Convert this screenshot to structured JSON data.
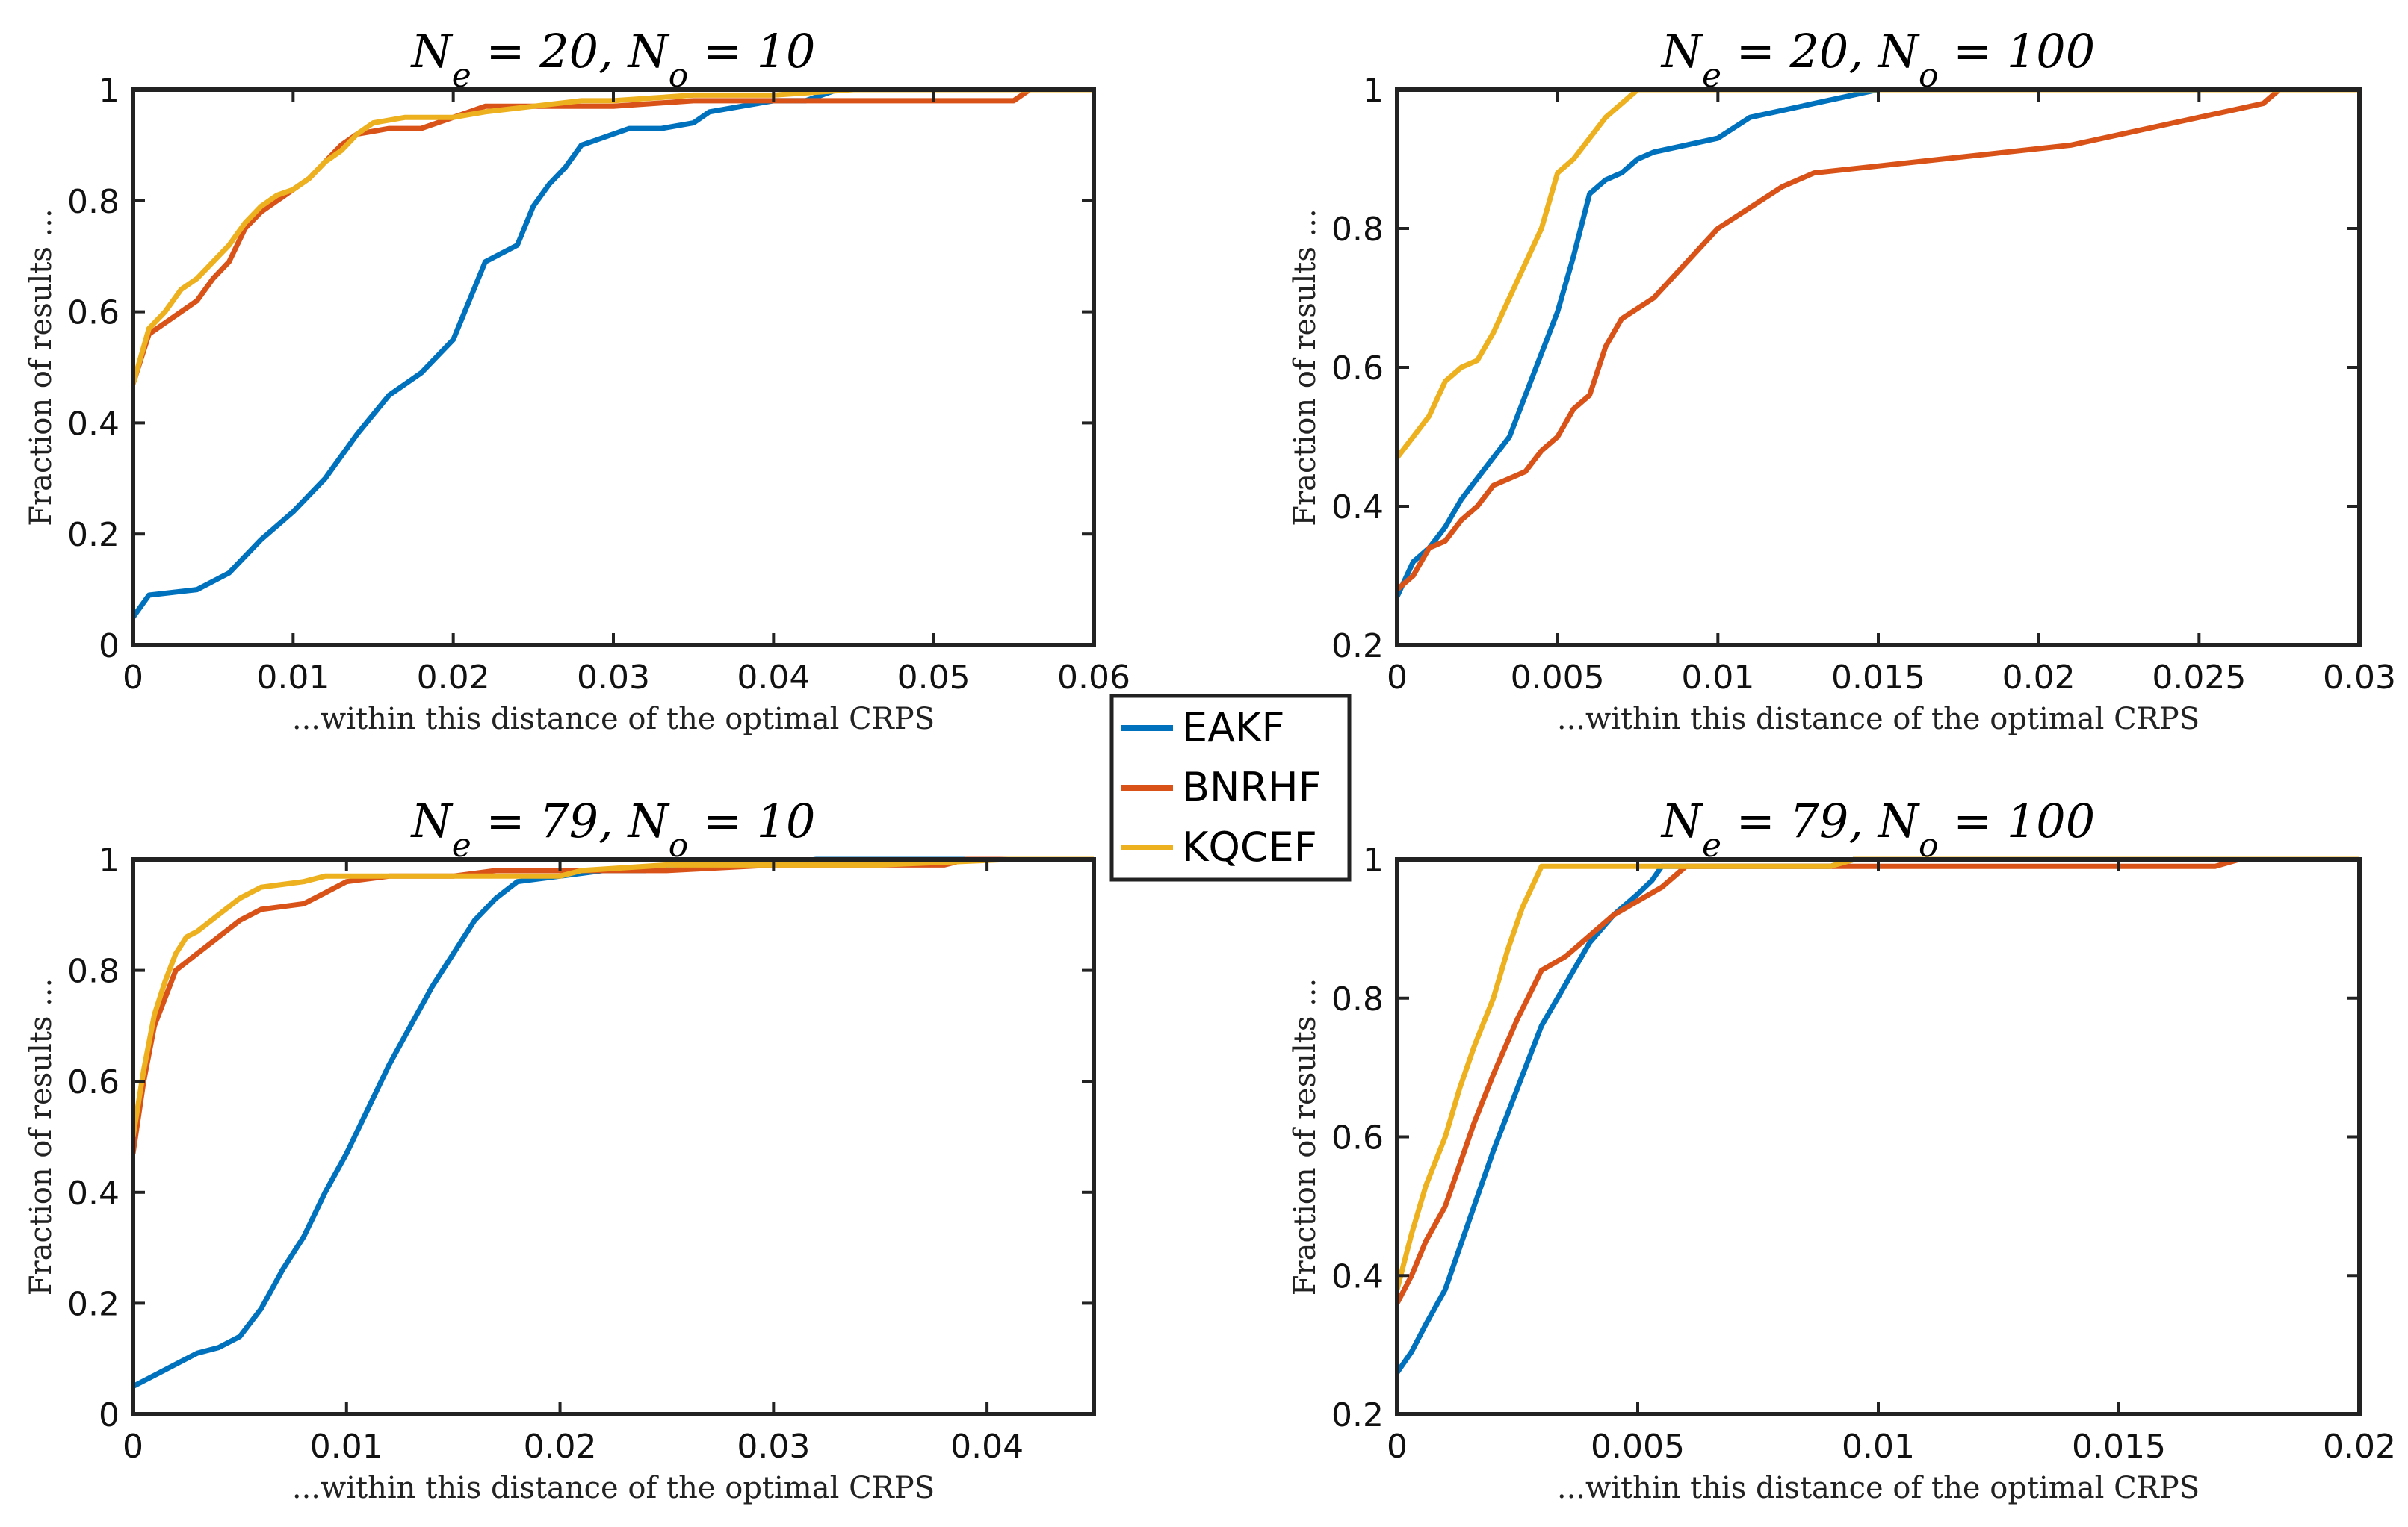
{
  "figure": {
    "x_label": "...within this distance of the optimal CRPS",
    "y_label": "Fraction of results ..."
  },
  "legend": [
    {
      "name": "EAKF",
      "color": "#0072BD"
    },
    {
      "name": "BNRHF",
      "color": "#D95319"
    },
    {
      "name": "KQCEF",
      "color": "#EDB120"
    }
  ],
  "chart_data": [
    {
      "type": "line",
      "title": "N_e = 20, N_o = 10",
      "title_display": "Ne = 20,  No = 10",
      "xlabel": "...within this distance of the optimal CRPS",
      "ylabel": "Fraction of results ...",
      "xlim": [
        0,
        0.06
      ],
      "ylim": [
        0,
        1
      ],
      "xticks": [
        0,
        0.01,
        0.02,
        0.03,
        0.04,
        0.05,
        0.06
      ],
      "xtick_labels": [
        "0",
        "0.01",
        "0.02",
        "0.03",
        "0.04",
        "0.05",
        "0.06"
      ],
      "yticks": [
        0,
        0.2,
        0.4,
        0.6,
        0.8,
        1
      ],
      "ytick_labels": [
        "0",
        "0.2",
        "0.4",
        "0.6",
        "0.8",
        "1"
      ],
      "series": [
        {
          "name": "EAKF",
          "x": [
            0,
            0.001,
            0.004,
            0.006,
            0.008,
            0.01,
            0.012,
            0.014,
            0.016,
            0.018,
            0.02,
            0.021,
            0.022,
            0.024,
            0.025,
            0.026,
            0.027,
            0.028,
            0.029,
            0.03,
            0.031,
            0.033,
            0.035,
            0.036,
            0.038,
            0.04,
            0.042,
            0.043,
            0.044,
            0.06
          ],
          "y": [
            0.05,
            0.09,
            0.1,
            0.13,
            0.19,
            0.24,
            0.3,
            0.38,
            0.45,
            0.49,
            0.55,
            0.62,
            0.69,
            0.72,
            0.79,
            0.83,
            0.86,
            0.9,
            0.91,
            0.92,
            0.93,
            0.93,
            0.94,
            0.96,
            0.97,
            0.98,
            0.98,
            0.99,
            1.0,
            1.0
          ]
        },
        {
          "name": "BNRHF",
          "x": [
            0,
            0.001,
            0.002,
            0.003,
            0.004,
            0.005,
            0.006,
            0.007,
            0.008,
            0.009,
            0.01,
            0.011,
            0.012,
            0.013,
            0.014,
            0.016,
            0.018,
            0.02,
            0.021,
            0.022,
            0.025,
            0.03,
            0.035,
            0.04,
            0.045,
            0.05,
            0.055,
            0.056,
            0.06
          ],
          "y": [
            0.47,
            0.56,
            0.58,
            0.6,
            0.62,
            0.66,
            0.69,
            0.75,
            0.78,
            0.8,
            0.82,
            0.84,
            0.87,
            0.9,
            0.92,
            0.93,
            0.93,
            0.95,
            0.96,
            0.97,
            0.97,
            0.97,
            0.98,
            0.98,
            0.98,
            0.98,
            0.98,
            1.0,
            1.0
          ]
        },
        {
          "name": "KQCEF",
          "x": [
            0,
            0.001,
            0.002,
            0.003,
            0.004,
            0.005,
            0.006,
            0.007,
            0.008,
            0.009,
            0.01,
            0.011,
            0.012,
            0.013,
            0.014,
            0.015,
            0.017,
            0.02,
            0.022,
            0.025,
            0.028,
            0.03,
            0.035,
            0.04,
            0.045,
            0.06
          ],
          "y": [
            0.47,
            0.57,
            0.6,
            0.64,
            0.66,
            0.69,
            0.72,
            0.76,
            0.79,
            0.81,
            0.82,
            0.84,
            0.87,
            0.89,
            0.92,
            0.94,
            0.95,
            0.95,
            0.96,
            0.97,
            0.98,
            0.98,
            0.99,
            0.99,
            1.0,
            1.0
          ]
        }
      ]
    },
    {
      "type": "line",
      "title": "N_e = 20, N_o = 100",
      "title_display": "Ne = 20,  No = 100",
      "xlabel": "...within this distance of the optimal CRPS",
      "ylabel": "Fraction of results ...",
      "xlim": [
        0,
        0.03
      ],
      "ylim": [
        0.2,
        1
      ],
      "xticks": [
        0,
        0.005,
        0.01,
        0.015,
        0.02,
        0.025,
        0.03
      ],
      "xtick_labels": [
        "0",
        "0.005",
        "0.01",
        "0.015",
        "0.02",
        "0.025",
        "0.03"
      ],
      "yticks": [
        0.2,
        0.4,
        0.6,
        0.8,
        1
      ],
      "ytick_labels": [
        "0.2",
        "0.4",
        "0.6",
        "0.8",
        "1"
      ],
      "series": [
        {
          "name": "EAKF",
          "x": [
            0,
            0.0005,
            0.001,
            0.0015,
            0.002,
            0.0025,
            0.003,
            0.0035,
            0.004,
            0.0045,
            0.005,
            0.0055,
            0.006,
            0.0065,
            0.007,
            0.0075,
            0.008,
            0.009,
            0.01,
            0.011,
            0.012,
            0.013,
            0.014,
            0.015,
            0.03
          ],
          "y": [
            0.27,
            0.32,
            0.34,
            0.37,
            0.41,
            0.44,
            0.47,
            0.5,
            0.56,
            0.62,
            0.68,
            0.76,
            0.85,
            0.87,
            0.88,
            0.9,
            0.91,
            0.92,
            0.93,
            0.96,
            0.97,
            0.98,
            0.99,
            1.0,
            1.0
          ]
        },
        {
          "name": "BNRHF",
          "x": [
            0,
            0.0005,
            0.001,
            0.0015,
            0.002,
            0.0025,
            0.003,
            0.004,
            0.0045,
            0.005,
            0.0055,
            0.006,
            0.0065,
            0.007,
            0.008,
            0.009,
            0.01,
            0.011,
            0.012,
            0.013,
            0.015,
            0.017,
            0.019,
            0.021,
            0.023,
            0.025,
            0.026,
            0.027,
            0.0275,
            0.03
          ],
          "y": [
            0.28,
            0.3,
            0.34,
            0.35,
            0.38,
            0.4,
            0.43,
            0.45,
            0.48,
            0.5,
            0.54,
            0.56,
            0.63,
            0.67,
            0.7,
            0.75,
            0.8,
            0.83,
            0.86,
            0.88,
            0.89,
            0.9,
            0.91,
            0.92,
            0.94,
            0.96,
            0.97,
            0.98,
            1.0,
            1.0
          ]
        },
        {
          "name": "KQCEF",
          "x": [
            0,
            0.0005,
            0.001,
            0.0015,
            0.002,
            0.0025,
            0.003,
            0.0035,
            0.004,
            0.0045,
            0.005,
            0.0055,
            0.006,
            0.0065,
            0.007,
            0.0075,
            0.03
          ],
          "y": [
            0.47,
            0.5,
            0.53,
            0.58,
            0.6,
            0.61,
            0.65,
            0.7,
            0.75,
            0.8,
            0.88,
            0.9,
            0.93,
            0.96,
            0.98,
            1.0,
            1.0
          ]
        }
      ]
    },
    {
      "type": "line",
      "title": "N_e = 79, N_o = 10",
      "title_display": "Ne = 79,  No = 10",
      "xlabel": "...within this distance of the optimal CRPS",
      "ylabel": "Fraction of results ...",
      "xlim": [
        0,
        0.045
      ],
      "ylim": [
        0,
        1
      ],
      "xticks": [
        0,
        0.01,
        0.02,
        0.03,
        0.04
      ],
      "xtick_labels": [
        "0",
        "0.01",
        "0.02",
        "0.03",
        "0.04"
      ],
      "yticks": [
        0,
        0.2,
        0.4,
        0.6,
        0.8,
        1
      ],
      "ytick_labels": [
        "0",
        "0.2",
        "0.4",
        "0.6",
        "0.8",
        "1"
      ],
      "series": [
        {
          "name": "EAKF",
          "x": [
            0,
            0.001,
            0.002,
            0.003,
            0.004,
            0.005,
            0.006,
            0.007,
            0.008,
            0.009,
            0.01,
            0.011,
            0.012,
            0.013,
            0.014,
            0.015,
            0.016,
            0.017,
            0.018,
            0.02,
            0.022,
            0.024,
            0.025,
            0.03,
            0.032,
            0.045
          ],
          "y": [
            0.05,
            0.07,
            0.09,
            0.11,
            0.12,
            0.14,
            0.19,
            0.26,
            0.32,
            0.4,
            0.47,
            0.55,
            0.63,
            0.7,
            0.77,
            0.83,
            0.89,
            0.93,
            0.96,
            0.97,
            0.98,
            0.98,
            0.99,
            0.99,
            1.0,
            1.0
          ]
        },
        {
          "name": "BNRHF",
          "x": [
            0,
            0.0005,
            0.001,
            0.0015,
            0.002,
            0.003,
            0.004,
            0.005,
            0.006,
            0.008,
            0.009,
            0.01,
            0.012,
            0.015,
            0.017,
            0.018,
            0.02,
            0.025,
            0.03,
            0.035,
            0.038,
            0.039,
            0.045
          ],
          "y": [
            0.47,
            0.6,
            0.7,
            0.75,
            0.8,
            0.83,
            0.86,
            0.89,
            0.91,
            0.92,
            0.94,
            0.96,
            0.97,
            0.97,
            0.98,
            0.98,
            0.98,
            0.98,
            0.99,
            0.99,
            0.99,
            1.0,
            1.0
          ]
        },
        {
          "name": "KQCEF",
          "x": [
            0,
            0.0005,
            0.001,
            0.0015,
            0.002,
            0.0025,
            0.003,
            0.004,
            0.005,
            0.006,
            0.008,
            0.009,
            0.01,
            0.015,
            0.02,
            0.021,
            0.025,
            0.03,
            0.035,
            0.041,
            0.045
          ],
          "y": [
            0.5,
            0.62,
            0.72,
            0.78,
            0.83,
            0.86,
            0.87,
            0.9,
            0.93,
            0.95,
            0.96,
            0.97,
            0.97,
            0.97,
            0.97,
            0.98,
            0.99,
            0.99,
            0.99,
            1.0,
            1.0
          ]
        }
      ]
    },
    {
      "type": "line",
      "title": "N_e = 79, N_o = 100",
      "title_display": "Ne = 79,  No = 100",
      "xlabel": "...within this distance of the optimal CRPS",
      "ylabel": "Fraction of results ...",
      "xlim": [
        0,
        0.02
      ],
      "ylim": [
        0.2,
        1
      ],
      "xticks": [
        0,
        0.005,
        0.01,
        0.015,
        0.02
      ],
      "xtick_labels": [
        "0",
        "0.005",
        "0.01",
        "0.015",
        "0.02"
      ],
      "yticks": [
        0.2,
        0.4,
        0.6,
        0.8,
        1
      ],
      "ytick_labels": [
        "0.2",
        "0.4",
        "0.6",
        "0.8",
        "1"
      ],
      "series": [
        {
          "name": "EAKF",
          "x": [
            0,
            0.0003,
            0.0006,
            0.001,
            0.0013,
            0.0016,
            0.002,
            0.0025,
            0.003,
            0.0035,
            0.004,
            0.0045,
            0.005,
            0.0053,
            0.0055,
            0.006,
            0.007,
            0.008,
            0.009,
            0.0095,
            0.02
          ],
          "y": [
            0.26,
            0.29,
            0.33,
            0.38,
            0.44,
            0.5,
            0.58,
            0.67,
            0.76,
            0.82,
            0.88,
            0.92,
            0.95,
            0.97,
            0.99,
            0.99,
            0.99,
            0.99,
            0.99,
            1.0,
            1.0
          ]
        },
        {
          "name": "BNRHF",
          "x": [
            0,
            0.0003,
            0.0006,
            0.001,
            0.0013,
            0.0016,
            0.002,
            0.0025,
            0.003,
            0.0035,
            0.004,
            0.0045,
            0.005,
            0.0055,
            0.006,
            0.008,
            0.01,
            0.015,
            0.017,
            0.0175,
            0.02
          ],
          "y": [
            0.36,
            0.4,
            0.45,
            0.5,
            0.56,
            0.62,
            0.69,
            0.77,
            0.84,
            0.86,
            0.89,
            0.92,
            0.94,
            0.96,
            0.99,
            0.99,
            0.99,
            0.99,
            0.99,
            1.0,
            1.0
          ]
        },
        {
          "name": "KQCEF",
          "x": [
            0,
            0.0003,
            0.0006,
            0.001,
            0.0013,
            0.0016,
            0.002,
            0.0023,
            0.0026,
            0.003,
            0.005,
            0.007,
            0.009,
            0.0095,
            0.02
          ],
          "y": [
            0.38,
            0.46,
            0.53,
            0.6,
            0.67,
            0.73,
            0.8,
            0.87,
            0.93,
            0.99,
            0.99,
            0.99,
            0.99,
            1.0,
            1.0
          ]
        }
      ]
    }
  ]
}
